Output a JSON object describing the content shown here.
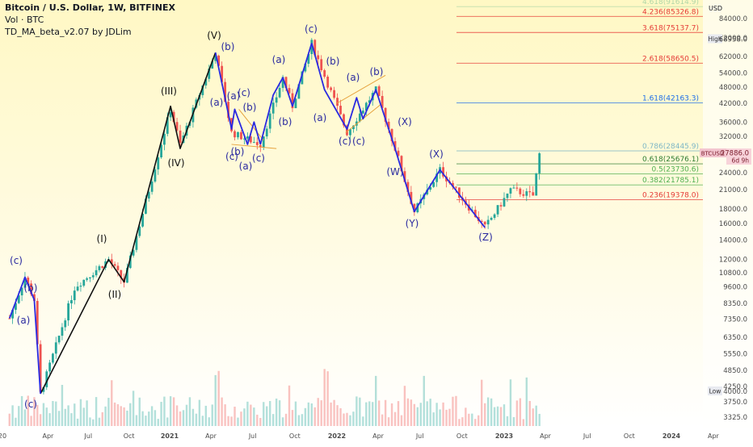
{
  "header": {
    "title": "Bitcoin / U.S. Dollar, 1W, BITFINEX",
    "vol": "Vol · BTC",
    "indicator": "TD_MA_beta_v2.07 by JDLim"
  },
  "price_axis": {
    "currency": "USD",
    "ticks": [
      "84000.0",
      "72000.0",
      "62000.0",
      "54000.0",
      "48000.0",
      "42000.0",
      "36000.0",
      "32000.0",
      "27886.0",
      "24000.0",
      "21000.0",
      "18000.0",
      "16000.0",
      "14000.0",
      "12000.0",
      "10800.0",
      "9600.0",
      "8350.0",
      "7350.0",
      "6350.0",
      "5550.0",
      "4850.0",
      "4250.0",
      "4000.0",
      "3750.0",
      "3325.0"
    ],
    "high_label": "High",
    "high_value": "68958.0",
    "low_label": "Low",
    "low_value": "4000.0",
    "symbol_label": "BTCUSD",
    "last_price": "27886.0",
    "countdown": "6d 9h"
  },
  "time_axis": {
    "ticks": [
      "20",
      "Apr",
      "Jul",
      "Oct",
      "2021",
      "Apr",
      "Jul",
      "Oct",
      "2022",
      "Apr",
      "Jul",
      "Oct",
      "2023",
      "Apr",
      "Jul",
      "Oct",
      "2024",
      "Apr"
    ]
  },
  "fib_levels": [
    {
      "label": "4.618(91614.9)",
      "color": "#b0d7a8"
    },
    {
      "label": "4.236(85326.8)",
      "color": "#e53935"
    },
    {
      "label": "3.618(75137.7)",
      "color": "#e53935"
    },
    {
      "label": "2.618(58650.5)",
      "color": "#e53935"
    },
    {
      "label": "1.618(42163.3)",
      "color": "#1e6ee8"
    },
    {
      "label": "0.786(28445.9)",
      "color": "#7fb8c6"
    },
    {
      "label": "0.618(25676.1)",
      "color": "#2e7d32"
    },
    {
      "label": "0.5(23730.6)",
      "color": "#4caf50"
    },
    {
      "label": "0.382(21785.1)",
      "color": "#4caf50"
    },
    {
      "label": "0.236(19378.0)",
      "color": "#e53935"
    }
  ],
  "wave_labels": [
    {
      "text": "(c)",
      "color": "#2a2aa0"
    },
    {
      "text": "(a)",
      "color": "#2a2aa0"
    },
    {
      "text": "(b)",
      "color": "#2a2aa0"
    },
    {
      "text": "(c)",
      "color": "#2a2aa0"
    },
    {
      "text": "(I)",
      "color": "#111111"
    },
    {
      "text": "(II)",
      "color": "#111111"
    },
    {
      "text": "(III)",
      "color": "#111111"
    },
    {
      "text": "(IV)",
      "color": "#111111"
    },
    {
      "text": "(V)",
      "color": "#111111"
    },
    {
      "text": "(b)",
      "color": "#2a2aa0"
    },
    {
      "text": "(a)",
      "color": "#2a2aa0"
    },
    {
      "text": "(a)",
      "color": "#2a2aa0"
    },
    {
      "text": "(c)",
      "color": "#2a2aa0"
    },
    {
      "text": "(b)",
      "color": "#2a2aa0"
    },
    {
      "text": "(b)",
      "color": "#2a2aa0"
    },
    {
      "text": "(c)",
      "color": "#2a2aa0"
    },
    {
      "text": "(a)",
      "color": "#2a2aa0"
    },
    {
      "text": "(c)",
      "color": "#2a2aa0"
    },
    {
      "text": "(a)",
      "color": "#2a2aa0"
    },
    {
      "text": "(b)",
      "color": "#2a2aa0"
    },
    {
      "text": "(c)",
      "color": "#2a2aa0"
    },
    {
      "text": "(a)",
      "color": "#2a2aa0"
    },
    {
      "text": "(b)",
      "color": "#2a2aa0"
    },
    {
      "text": "(a)",
      "color": "#2a2aa0"
    },
    {
      "text": "(c)",
      "color": "#2a2aa0"
    },
    {
      "text": "(c)",
      "color": "#2a2aa0"
    },
    {
      "text": "(b)",
      "color": "#2a2aa0"
    },
    {
      "text": "(X)",
      "color": "#2a2aa0"
    },
    {
      "text": "(W)",
      "color": "#2a2aa0"
    },
    {
      "text": "(Y)",
      "color": "#2a2aa0"
    },
    {
      "text": "(X)",
      "color": "#2a2aa0"
    },
    {
      "text": "(Z)",
      "color": "#2a2aa0"
    }
  ],
  "colors": {
    "background_top": "#fff8c4",
    "background_bottom": "#ffffff",
    "up_candle": "#26a69a",
    "down_candle": "#ef5350",
    "wave_blue": "#2a2ae0",
    "wave_black": "#111111",
    "triangle_line": "#e6a23c"
  },
  "chart_data": {
    "type": "candlestick",
    "symbol": "BTCUSD",
    "timeframe": "1W",
    "exchange": "BITFINEX",
    "y_scale": "log",
    "ylim": [
      3100,
      110000
    ],
    "x_range": [
      "2020-01",
      "2024-05"
    ],
    "close_path": [
      {
        "date": "2020-01-05",
        "price": 7400
      },
      {
        "date": "2020-02-09",
        "price": 10400
      },
      {
        "date": "2020-03-01",
        "price": 8600
      },
      {
        "date": "2020-03-15",
        "price": 4000
      },
      {
        "date": "2020-06-01",
        "price": 9600
      },
      {
        "date": "2020-08-16",
        "price": 12000
      },
      {
        "date": "2020-09-20",
        "price": 10000
      },
      {
        "date": "2021-01-03",
        "price": 40000
      },
      {
        "date": "2021-01-24",
        "price": 30000
      },
      {
        "date": "2021-04-11",
        "price": 64000
      },
      {
        "date": "2021-05-16",
        "price": 33000
      },
      {
        "date": "2021-07-18",
        "price": 30000
      },
      {
        "date": "2021-09-05",
        "price": 52000
      },
      {
        "date": "2021-09-26",
        "price": 41000
      },
      {
        "date": "2021-11-07",
        "price": 68958
      },
      {
        "date": "2022-01-23",
        "price": 33000
      },
      {
        "date": "2022-03-27",
        "price": 47000
      },
      {
        "date": "2022-05-08",
        "price": 29000
      },
      {
        "date": "2022-06-19",
        "price": 17600
      },
      {
        "date": "2022-08-14",
        "price": 24500
      },
      {
        "date": "2022-11-20",
        "price": 15500
      },
      {
        "date": "2023-01-15",
        "price": 21000
      },
      {
        "date": "2023-03-05",
        "price": 20000
      },
      {
        "date": "2023-03-19",
        "price": 27886
      }
    ],
    "annotations": [
      "High 68958.0",
      "Low 4000.0"
    ]
  }
}
